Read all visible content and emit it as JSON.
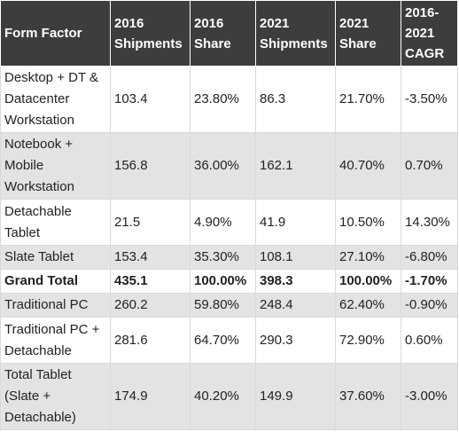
{
  "table": {
    "headers": [
      "Form Factor",
      "2016 Shipments",
      "2016 Share",
      "2021 Shipments",
      "2021 Share",
      "2016-2021 CAGR"
    ],
    "rows": [
      {
        "cells": [
          "Desktop + DT & Datacenter Workstation",
          "103.4",
          "23.80%",
          "86.3",
          "21.70%",
          "-3.50%"
        ]
      },
      {
        "cells": [
          "Notebook + Mobile Workstation",
          "156.8",
          "36.00%",
          "162.1",
          "40.70%",
          "0.70%"
        ]
      },
      {
        "cells": [
          "Detachable Tablet",
          "21.5",
          "4.90%",
          "41.9",
          "10.50%",
          "14.30%"
        ]
      },
      {
        "cells": [
          "Slate Tablet",
          "153.4",
          "35.30%",
          "108.1",
          "27.10%",
          "-6.80%"
        ]
      },
      {
        "cells": [
          "Grand Total",
          "435.1",
          "100.00%",
          "398.3",
          "100.00%",
          "-1.70%"
        ]
      },
      {
        "cells": [
          "Traditional PC",
          "260.2",
          "59.80%",
          "248.4",
          "62.40%",
          "-0.90%"
        ]
      },
      {
        "cells": [
          "Traditional PC + Detachable",
          "281.6",
          "64.70%",
          "290.3",
          "72.90%",
          "0.60%"
        ]
      },
      {
        "cells": [
          "Total Tablet (Slate + Detachable)",
          "174.9",
          "40.20%",
          "149.9",
          "37.60%",
          "-3.00%"
        ]
      }
    ]
  },
  "colors": {
    "header_background": "#3d3d3d",
    "header_text": "#ffffff",
    "row_light": "#ffffff",
    "row_dark": "#e3e3e3",
    "border": "#d9d9d9"
  }
}
